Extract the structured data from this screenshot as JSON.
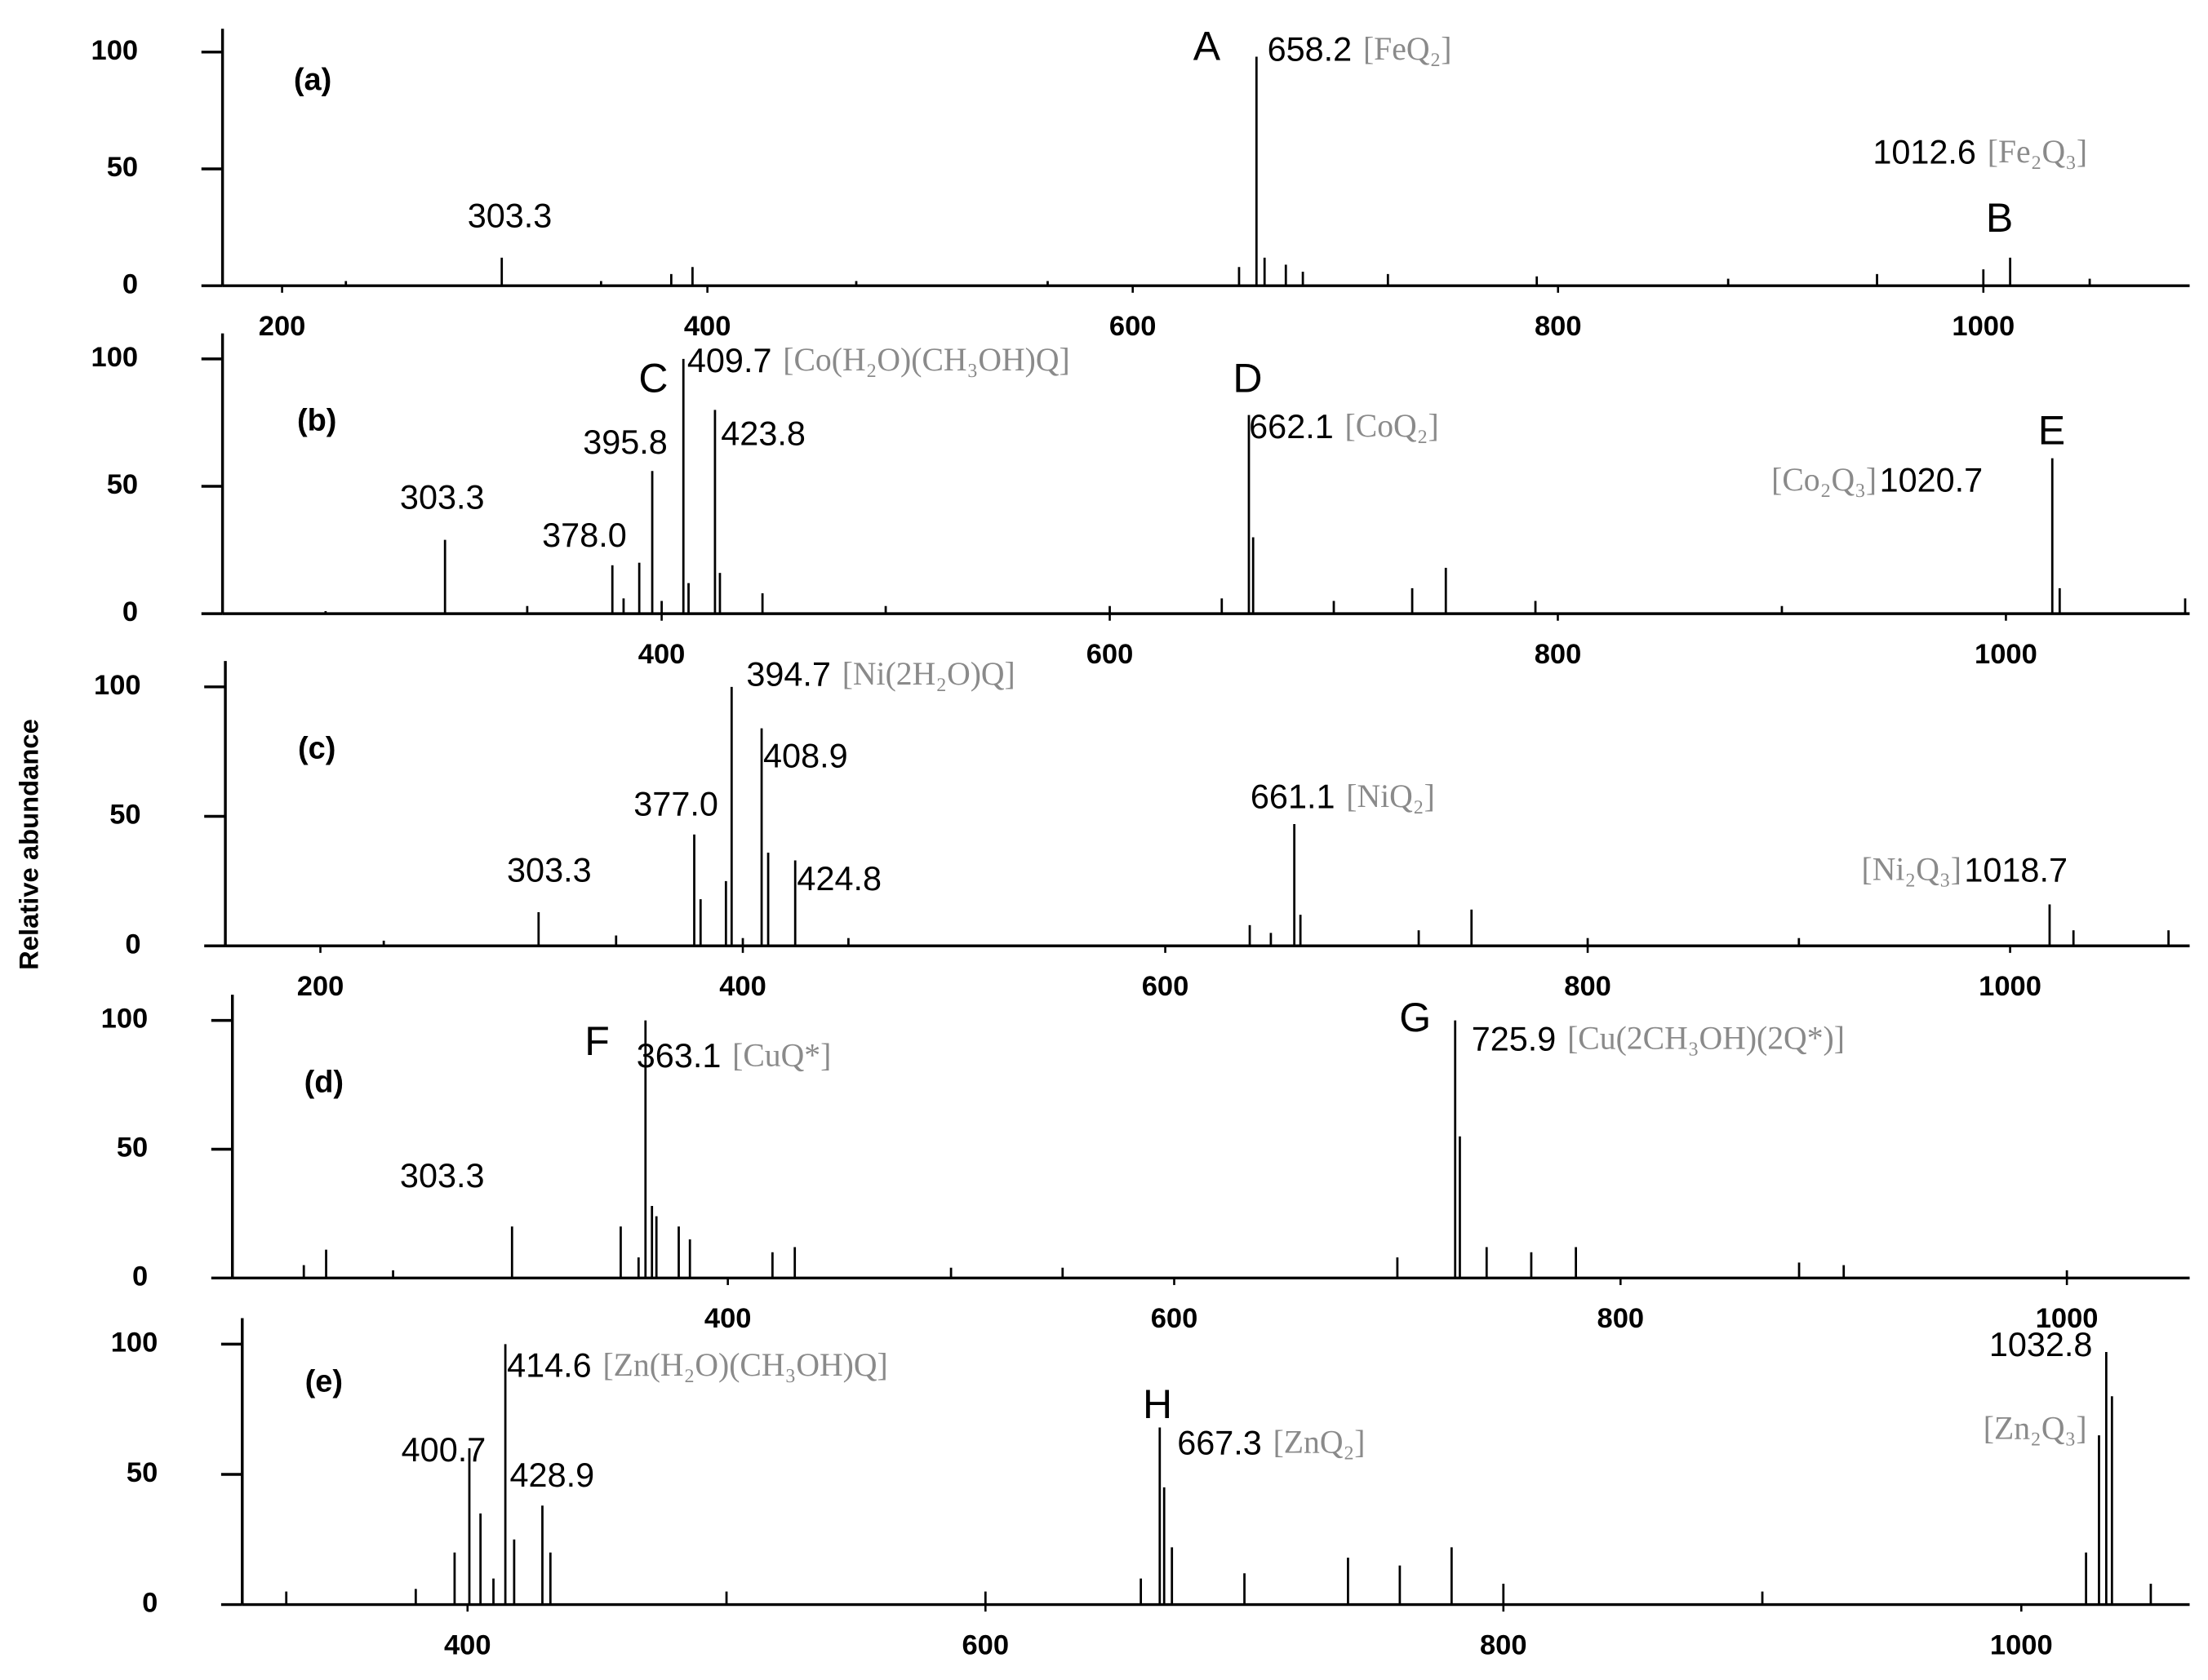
{
  "chart_data": [
    {
      "type": "stem",
      "panel_label": "(a)",
      "color": "#000000",
      "x": [
        230,
        303.3,
        350,
        383,
        393,
        470,
        560,
        650,
        658.2,
        662,
        672,
        680,
        720,
        790,
        880,
        950,
        1000,
        1012.6,
        1050
      ],
      "values": [
        2,
        12,
        2,
        5,
        8,
        2,
        2,
        8,
        98,
        12,
        9,
        6,
        5,
        4,
        3,
        5,
        7,
        12,
        3
      ],
      "peak_labels": [
        null,
        "303.3",
        null,
        null,
        null,
        null,
        null,
        null,
        "658.2",
        null,
        null,
        null,
        null,
        null,
        null,
        null,
        null,
        "1012.6",
        null
      ],
      "formulas": [
        null,
        null,
        null,
        null,
        null,
        null,
        null,
        null,
        "[FeQ₂]",
        null,
        null,
        null,
        null,
        null,
        null,
        null,
        null,
        "[Fe₂Q₃]",
        null
      ],
      "letters": [
        null,
        null,
        null,
        null,
        null,
        null,
        null,
        null,
        "A",
        null,
        null,
        null,
        null,
        null,
        null,
        null,
        null,
        "B",
        null
      ],
      "xlim": [
        172,
        1097
      ],
      "xticks": [
        200,
        400,
        600,
        800,
        1000
      ],
      "ylim": [
        0,
        110
      ],
      "yticks": [
        0,
        50,
        100
      ]
    },
    {
      "type": "stem",
      "panel_label": "(b)",
      "color": "#000000",
      "x": [
        250,
        303.3,
        340,
        378.0,
        383,
        390,
        395.8,
        400,
        409.7,
        412,
        423.8,
        426,
        445,
        500,
        600,
        650,
        662.1,
        664,
        700,
        735,
        750,
        790,
        900,
        1020.7,
        1024,
        1080
      ],
      "values": [
        1,
        29,
        3,
        19,
        6,
        20,
        56,
        5,
        100,
        12,
        80,
        16,
        8,
        3,
        3,
        6,
        78,
        30,
        5,
        10,
        18,
        5,
        3,
        61,
        10,
        6
      ],
      "peak_labels": [
        null,
        "303.3",
        null,
        "378.0",
        null,
        null,
        "395.8",
        null,
        "409.7",
        null,
        "423.8",
        null,
        null,
        null,
        null,
        null,
        "662.1",
        null,
        null,
        null,
        null,
        null,
        null,
        "1020.7",
        null,
        null
      ],
      "formulas": [
        null,
        null,
        null,
        null,
        null,
        null,
        null,
        null,
        "[Co(H₂O)(CH₃OH)Q]",
        null,
        null,
        null,
        null,
        null,
        null,
        null,
        "[CoQ₂]",
        null,
        null,
        null,
        null,
        null,
        null,
        "[Co₂Q₃]",
        null,
        null
      ],
      "letters": [
        null,
        null,
        null,
        null,
        null,
        null,
        null,
        null,
        "C",
        null,
        null,
        null,
        null,
        null,
        null,
        null,
        "D",
        null,
        null,
        null,
        null,
        null,
        null,
        "E",
        null,
        null
      ],
      "xlim": [
        204,
        1082
      ],
      "xticks": [
        400,
        600,
        800,
        1000
      ],
      "ylim": [
        0,
        110
      ],
      "yticks": [
        0,
        50,
        100
      ]
    },
    {
      "type": "stem",
      "panel_label": "(c)",
      "color": "#000000",
      "ylabel": "Relative abundance",
      "x": [
        230,
        303.3,
        340,
        377.0,
        380,
        392,
        394.7,
        400,
        408.9,
        412,
        424.8,
        450,
        640,
        650,
        661.1,
        664,
        720,
        745,
        800,
        900,
        1018.7,
        1030,
        1075
      ],
      "values": [
        2,
        13,
        4,
        43,
        18,
        25,
        100,
        3,
        84,
        36,
        33,
        3,
        8,
        5,
        47,
        12,
        6,
        14,
        3,
        3,
        16,
        6,
        6
      ],
      "peak_labels": [
        null,
        "303.3",
        null,
        "377.0",
        null,
        null,
        "394.7",
        null,
        "408.9",
        null,
        "424.8",
        null,
        null,
        null,
        "661.1",
        null,
        null,
        null,
        null,
        null,
        "1018.7",
        null,
        null
      ],
      "formulas": [
        null,
        null,
        null,
        null,
        null,
        null,
        "[Ni(2H₂O)Q]",
        null,
        null,
        null,
        null,
        null,
        null,
        null,
        "[NiQ₂]",
        null,
        null,
        null,
        null,
        null,
        "[Ni₂Q₃]",
        null,
        null
      ],
      "xlim": [
        155,
        1085
      ],
      "xticks": [
        200,
        400,
        600,
        800,
        1000
      ],
      "ylim": [
        0,
        110
      ],
      "yticks": [
        0,
        50,
        100
      ]
    },
    {
      "type": "stem",
      "panel_label": "(d)",
      "color": "#000000",
      "x": [
        210,
        220,
        250,
        303.3,
        352,
        360,
        363.1,
        366,
        368,
        378,
        383,
        420,
        430,
        500,
        550,
        700,
        725.9,
        728,
        740,
        760,
        780,
        880,
        900,
        1000
      ],
      "values": [
        5,
        11,
        3,
        20,
        20,
        8,
        100,
        28,
        24,
        20,
        15,
        10,
        12,
        4,
        4,
        8,
        100,
        55,
        12,
        10,
        12,
        6,
        5,
        3
      ],
      "peak_labels": [
        null,
        null,
        null,
        "303.3",
        null,
        null,
        "363.1",
        null,
        null,
        null,
        null,
        null,
        null,
        null,
        null,
        null,
        "725.9",
        null,
        null,
        null,
        null,
        null,
        null,
        null
      ],
      "formulas": [
        null,
        null,
        null,
        null,
        null,
        null,
        "[CuQ*]",
        null,
        null,
        null,
        null,
        null,
        null,
        null,
        null,
        null,
        "[Cu(2CH₃OH)(2Q*)]",
        null,
        null,
        null,
        null,
        null,
        null,
        null
      ],
      "letters": [
        null,
        null,
        null,
        null,
        null,
        null,
        "F",
        null,
        null,
        null,
        null,
        null,
        null,
        null,
        null,
        null,
        "G",
        null,
        null,
        null,
        null,
        null,
        null,
        null
      ],
      "xlim": [
        178,
        1055
      ],
      "xticks": [
        400,
        600,
        800,
        1000
      ],
      "ylim": [
        0,
        110
      ],
      "yticks": [
        0,
        50,
        100
      ]
    },
    {
      "type": "stem",
      "panel_label": "(e)",
      "color": "#000000",
      "x": [
        330,
        380,
        395,
        400.7,
        405,
        410,
        414.6,
        418,
        428.9,
        432,
        500,
        600,
        660,
        667.3,
        669,
        672,
        700,
        740,
        760,
        780,
        800,
        900,
        1025,
        1030,
        1032.8,
        1035,
        1050
      ],
      "values": [
        5,
        6,
        20,
        60,
        35,
        10,
        100,
        25,
        38,
        20,
        5,
        5,
        10,
        68,
        45,
        22,
        12,
        18,
        15,
        22,
        8,
        5,
        20,
        65,
        97,
        80,
        8
      ],
      "peak_labels": [
        null,
        null,
        null,
        "400.7",
        null,
        null,
        "414.6",
        null,
        "428.9",
        null,
        null,
        null,
        null,
        "667.3",
        null,
        null,
        null,
        null,
        null,
        null,
        null,
        null,
        null,
        null,
        "1032.8",
        null,
        null
      ],
      "formulas": [
        null,
        null,
        null,
        null,
        null,
        null,
        "[Zn(H₂O)(CH₃OH)Q]",
        null,
        null,
        null,
        null,
        null,
        null,
        "[ZnQ₂]",
        null,
        null,
        null,
        null,
        null,
        null,
        null,
        null,
        null,
        null,
        "[Zn₂Q₃]",
        null,
        null
      ],
      "letters": [
        null,
        null,
        null,
        null,
        null,
        null,
        null,
        null,
        null,
        null,
        null,
        null,
        null,
        "H",
        null,
        null,
        null,
        null,
        null,
        null,
        null,
        null,
        null,
        null,
        null,
        null,
        null
      ],
      "xlim": [
        313,
        1065
      ],
      "xticks": [
        400,
        600,
        800,
        1000
      ],
      "ylim": [
        0,
        110
      ],
      "yticks": [
        0,
        50,
        100
      ]
    }
  ]
}
